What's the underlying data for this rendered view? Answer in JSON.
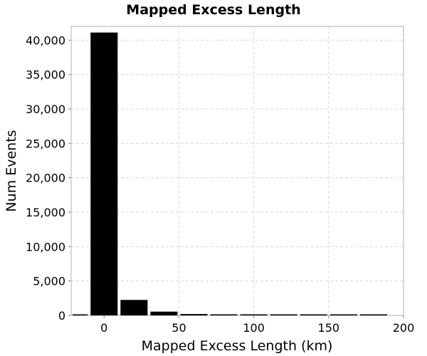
{
  "chart_data": {
    "type": "bar",
    "title": "Mapped Excess Length",
    "xlabel": "Mapped Excess Length (km)",
    "ylabel": "Num Events",
    "xlim": [
      -22,
      200
    ],
    "ylim": [
      0,
      42000
    ],
    "x_ticks": [
      0,
      50,
      100,
      150,
      200
    ],
    "x_tick_labels": [
      "0",
      "50",
      "100",
      "150",
      "200"
    ],
    "y_ticks": [
      0,
      5000,
      10000,
      15000,
      20000,
      25000,
      30000,
      35000,
      40000
    ],
    "y_tick_labels": [
      "0",
      "5,000",
      "10,000",
      "15,000",
      "20,000",
      "25,000",
      "30,000",
      "35,000",
      "40,000"
    ],
    "bin_width": 20,
    "bin_centers": [
      -20,
      0,
      20,
      40,
      60,
      80,
      100,
      120,
      140,
      160,
      180
    ],
    "values": [
      100,
      41100,
      2250,
      550,
      200,
      80,
      40,
      20,
      10,
      5,
      3
    ],
    "grid": true,
    "bar_color": "#000000"
  }
}
